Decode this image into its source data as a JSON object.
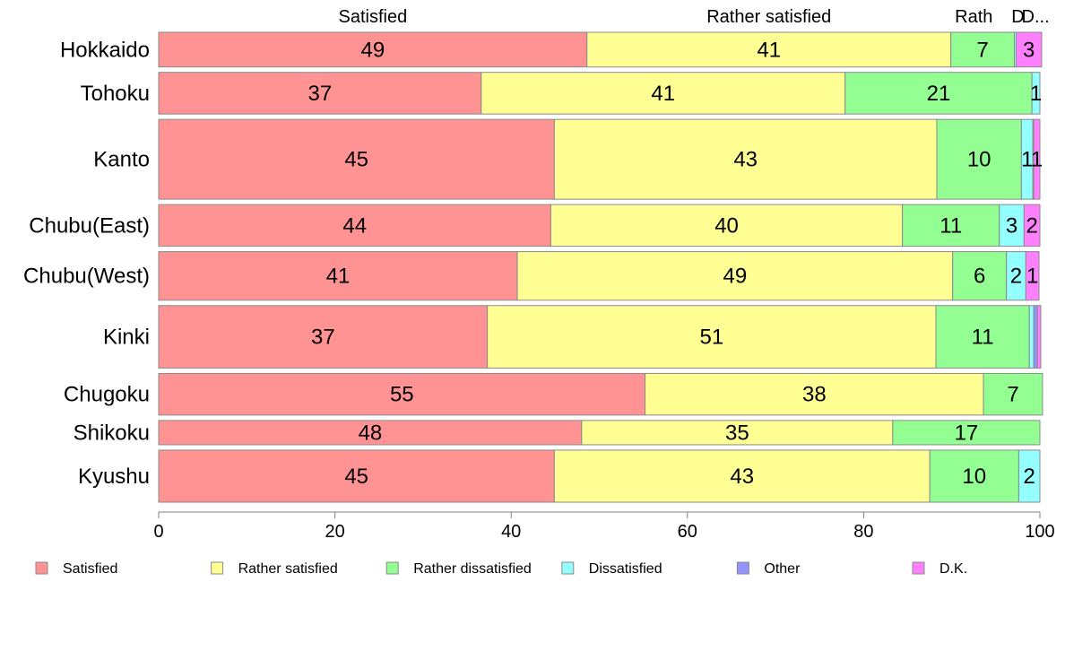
{
  "chart_data": {
    "type": "bar",
    "orientation": "horizontal",
    "stacked": true,
    "categories": [
      "Hokkaido",
      "Tohoku",
      "Kanto",
      "Chubu(East)",
      "Chubu(West)",
      "Kinki",
      "Chugoku",
      "Shikoku",
      "Kyushu"
    ],
    "series": [
      {
        "name": "Satisfied",
        "color": "#ff9393",
        "values": [
          48.6,
          36.6,
          44.9,
          44.5,
          40.7,
          37.3,
          55.2,
          48.0,
          44.9
        ]
      },
      {
        "name": "Rather satisfied",
        "color": "#ffff93",
        "values": [
          41.3,
          41.3,
          43.4,
          39.9,
          49.4,
          50.9,
          38.4,
          35.3,
          42.6
        ]
      },
      {
        "name": "Rather dissatisfied",
        "color": "#93ff93",
        "values": [
          7.2,
          21.2,
          9.6,
          11.0,
          6.1,
          10.6,
          6.7,
          16.7,
          10.1
        ]
      },
      {
        "name": "Dissatisfied",
        "color": "#93ffff",
        "values": [
          0.2,
          0.9,
          1.3,
          2.8,
          2.2,
          0.5,
          0.0,
          0.0,
          2.4
        ]
      },
      {
        "name": "Other",
        "color": "#9393ff",
        "values": [
          0.0,
          0.0,
          0.1,
          0.0,
          0.0,
          0.4,
          0.0,
          0.0,
          0.0
        ]
      },
      {
        "name": "D.K.",
        "color": "#ff80ff",
        "values": [
          2.9,
          0.0,
          0.7,
          1.8,
          1.5,
          0.4,
          0.0,
          0.0,
          0.0
        ]
      }
    ],
    "data_labels": [
      [
        "49",
        "41",
        "7",
        "",
        "",
        "3"
      ],
      [
        "37",
        "41",
        "21",
        "1",
        "",
        ""
      ],
      [
        "45",
        "43",
        "10",
        "1",
        "",
        "1"
      ],
      [
        "44",
        "40",
        "11",
        "3",
        "",
        "2"
      ],
      [
        "41",
        "49",
        "6",
        "2",
        "",
        "1"
      ],
      [
        "37",
        "51",
        "11",
        "",
        "",
        ""
      ],
      [
        "55",
        "38",
        "7",
        "",
        "",
        ""
      ],
      [
        "48",
        "35",
        "17",
        "",
        "",
        ""
      ],
      [
        "45",
        "43",
        "10",
        "2",
        "",
        ""
      ]
    ],
    "relative_bar_widths": [
      1.0,
      1.2,
      2.3,
      1.2,
      1.4,
      1.8,
      1.2,
      0.7,
      1.5
    ],
    "top_labels": [
      "Satisfied",
      "Rather satisfied",
      "Rath",
      "D",
      "D..."
    ],
    "xlim": [
      0,
      100
    ],
    "xticks": [
      0,
      20,
      40,
      60,
      80,
      100
    ],
    "legend_position": "bottom",
    "grid": false
  }
}
